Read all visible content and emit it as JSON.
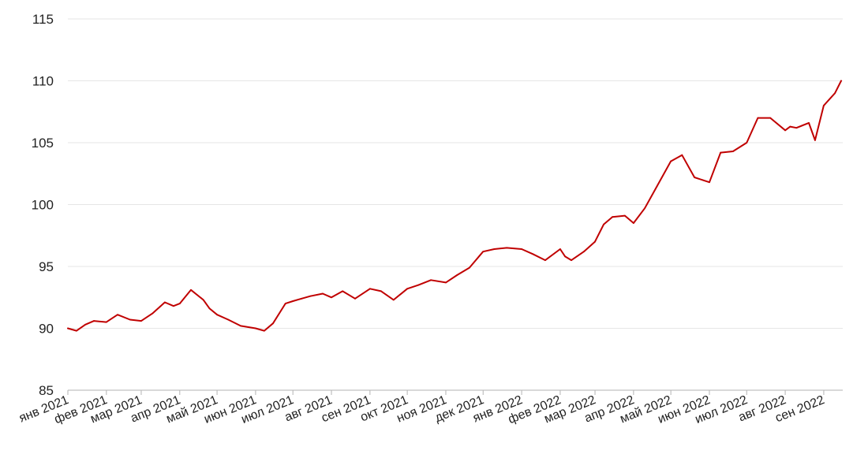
{
  "chart_data": {
    "type": "line",
    "title": "",
    "xlabel": "",
    "ylabel": "",
    "ylim": [
      85,
      115
    ],
    "yticks": [
      "85",
      "90",
      "95",
      "100",
      "105",
      "110",
      "115"
    ],
    "xticks": [
      "янв 2021",
      "фев 2021",
      "мар 2021",
      "апр 2021",
      "май 2021",
      "июн 2021",
      "июл 2021",
      "авг 2021",
      "сен 2021",
      "окт 2021",
      "ноя 2021",
      "дек 2021",
      "янв 2022",
      "фев 2022",
      "мар 2022",
      "апр 2022",
      "май 2022",
      "июн 2022",
      "июл 2022",
      "авг 2022",
      "сен 2022"
    ],
    "grid": true,
    "legend": "none",
    "line_color": "#c00000",
    "series": [
      {
        "x": [
          "2021-01-01",
          "2021-01-08",
          "2021-01-15",
          "2021-01-22",
          "2021-02-01",
          "2021-02-10",
          "2021-02-20",
          "2021-03-01",
          "2021-03-10",
          "2021-03-20",
          "2021-03-27",
          "2021-04-01",
          "2021-04-10",
          "2021-04-20",
          "2021-04-25",
          "2021-05-01",
          "2021-05-10",
          "2021-05-20",
          "2021-06-01",
          "2021-06-08",
          "2021-06-15",
          "2021-06-25",
          "2021-07-01",
          "2021-07-08",
          "2021-07-15",
          "2021-07-25",
          "2021-08-01",
          "2021-08-10",
          "2021-08-20",
          "2021-09-01",
          "2021-09-10",
          "2021-09-20",
          "2021-10-01",
          "2021-10-10",
          "2021-10-20",
          "2021-11-01",
          "2021-11-10",
          "2021-11-20",
          "2021-12-01",
          "2021-12-10",
          "2021-12-20",
          "2022-01-01",
          "2022-01-10",
          "2022-01-20",
          "2022-02-01",
          "2022-02-05",
          "2022-02-10",
          "2022-02-20",
          "2022-03-01",
          "2022-03-08",
          "2022-03-15",
          "2022-03-25",
          "2022-04-01",
          "2022-04-10",
          "2022-04-20",
          "2022-05-01",
          "2022-05-10",
          "2022-05-20",
          "2022-06-01",
          "2022-06-10",
          "2022-06-20",
          "2022-07-01",
          "2022-07-10",
          "2022-07-20",
          "2022-08-01",
          "2022-08-05",
          "2022-08-10",
          "2022-08-20",
          "2022-08-25",
          "2022-09-01",
          "2022-09-10",
          "2022-09-15"
        ],
        "values": [
          90.0,
          89.8,
          90.3,
          90.6,
          90.5,
          91.1,
          90.7,
          90.6,
          91.2,
          92.1,
          91.8,
          92.0,
          93.1,
          92.3,
          91.6,
          91.1,
          90.7,
          90.2,
          90.0,
          89.8,
          90.4,
          92.0,
          92.2,
          92.4,
          92.6,
          92.8,
          92.5,
          93.0,
          92.4,
          93.2,
          93.0,
          92.3,
          93.2,
          93.5,
          93.9,
          93.7,
          94.3,
          94.9,
          96.2,
          96.4,
          96.5,
          96.4,
          96.0,
          95.5,
          96.4,
          95.8,
          95.5,
          96.2,
          97.0,
          98.4,
          99.0,
          99.1,
          98.5,
          99.7,
          101.5,
          103.5,
          104.0,
          102.2,
          101.8,
          104.2,
          104.3,
          105.0,
          107.0,
          107.0,
          106.0,
          106.3,
          106.2,
          106.6,
          105.2,
          108.0,
          109.0,
          110.0
        ]
      }
    ]
  }
}
